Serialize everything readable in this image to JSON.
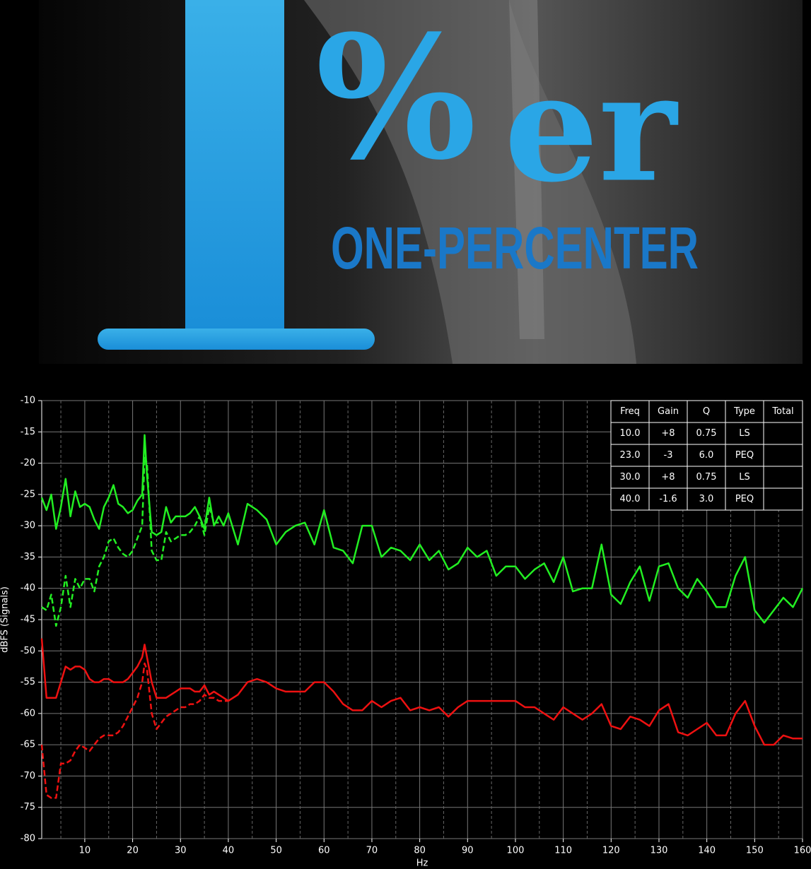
{
  "banner": {
    "digit": "1",
    "percent": "%",
    "suffix": "er",
    "subtitle": "ONE-PERCENTER"
  },
  "chart_data": {
    "type": "line",
    "xlabel": "Hz",
    "ylabel": "dBFS (Signals)",
    "xlim": [
      1,
      160
    ],
    "ylim": [
      -80,
      -10
    ],
    "xticks": [
      10,
      20,
      30,
      40,
      50,
      60,
      70,
      80,
      90,
      100,
      110,
      120,
      130,
      140,
      150,
      160
    ],
    "xminorticks": [
      5,
      15,
      25,
      35,
      45,
      55,
      65,
      75,
      85,
      95,
      105,
      115,
      125,
      135,
      145,
      155
    ],
    "yticks": [
      -10,
      -15,
      -20,
      -25,
      -30,
      -35,
      -40,
      -45,
      -50,
      -55,
      -60,
      -65,
      -70,
      -75,
      -80
    ],
    "grid": true,
    "x": [
      1,
      2,
      3,
      4,
      5,
      6,
      7,
      8,
      9,
      10,
      11,
      12,
      13,
      14,
      15,
      16,
      17,
      18,
      19,
      20,
      21,
      22,
      22.5,
      23,
      24,
      25,
      26,
      27,
      28,
      29,
      30,
      31,
      32,
      33,
      34,
      35,
      36,
      37,
      38,
      39,
      40,
      42,
      44,
      46,
      48,
      50,
      52,
      54,
      56,
      58,
      60,
      62,
      64,
      66,
      68,
      70,
      72,
      74,
      76,
      78,
      80,
      82,
      84,
      86,
      88,
      90,
      92,
      94,
      96,
      98,
      100,
      102,
      104,
      106,
      108,
      110,
      112,
      114,
      116,
      118,
      120,
      122,
      124,
      126,
      128,
      130,
      132,
      134,
      136,
      138,
      140,
      142,
      144,
      146,
      148,
      150,
      152,
      154,
      156,
      158,
      160
    ],
    "series": [
      {
        "color": "#22ee22",
        "dashed": false,
        "values": [
          -25.5,
          -27.5,
          -25,
          -30.5,
          -27,
          -22.5,
          -28.5,
          -24.5,
          -27,
          -26.5,
          -27,
          -29,
          -30.5,
          -27,
          -25.5,
          -23.5,
          -26.5,
          -27,
          -28,
          -27.5,
          -26,
          -25,
          -15.5,
          -22,
          -31,
          -31.5,
          -31,
          -27,
          -29.5,
          -28.5,
          -28.5,
          -28.5,
          -28,
          -27,
          -28.5,
          -30.5,
          -25.5,
          -30,
          -28.5,
          -30,
          -28,
          -33,
          -26.5,
          -27.5,
          -29,
          -33,
          -31,
          -30,
          -29.5,
          -33,
          -27.5,
          -33.5,
          -34,
          -36,
          -30,
          -30,
          -35,
          -33.5,
          -34,
          -35.5,
          -33,
          -35.5,
          -34,
          -37,
          -36,
          -33.5,
          -35,
          -34,
          -38,
          -36.5,
          -36.5,
          -38.5,
          -37,
          -36,
          -39,
          -35,
          -40.5,
          -40,
          -40,
          -33,
          -41,
          -42.5,
          -39,
          -36.5,
          -42,
          -36.5,
          -36,
          -40,
          -41.5,
          -38.5,
          -40.5,
          -43,
          -43,
          -38,
          -35,
          -43.5,
          -45.5,
          -43.5,
          -41.5,
          -43,
          -40
        ]
      },
      {
        "color": "#22ee22",
        "dashed": true,
        "values": [
          -43,
          -43.5,
          -41,
          -46,
          -43,
          -38,
          -43,
          -38.5,
          -40,
          -38.5,
          -38.5,
          -40.5,
          -36.5,
          -35,
          -32.5,
          -32,
          -33.5,
          -34.5,
          -35,
          -34,
          -32,
          -30,
          -19,
          -20,
          -34,
          -35.5,
          -35.5,
          -31,
          -32.5,
          -32,
          -31.5,
          -31.5,
          -31,
          -30,
          -28.5,
          -31.5,
          -27,
          -29.5,
          -29.5,
          null,
          null,
          null,
          null,
          null,
          null,
          null,
          null,
          null,
          null,
          null,
          null,
          null,
          null,
          null,
          null,
          null,
          null,
          null,
          null,
          null,
          null,
          null,
          null,
          null,
          null,
          null,
          null,
          null,
          null,
          null,
          null,
          null,
          null,
          null,
          null,
          null,
          null,
          null,
          null,
          null,
          null,
          null,
          null,
          null,
          null,
          null,
          null,
          null,
          null,
          null,
          null,
          null,
          null,
          null,
          null,
          null,
          null,
          null,
          null,
          null,
          null
        ]
      },
      {
        "color": "#ee1111",
        "dashed": false,
        "values": [
          -48,
          -57.5,
          -57.5,
          -57.5,
          -55,
          -52.5,
          -53,
          -52.5,
          -52.5,
          -53,
          -54.5,
          -55,
          -55,
          -54.5,
          -54.5,
          -55,
          -55,
          -55,
          -54.5,
          -53.5,
          -52.5,
          -51,
          -49,
          -51,
          -55,
          -57.5,
          -57.5,
          -57.5,
          -57,
          -56.5,
          -56,
          -56,
          -56,
          -56.5,
          -56.5,
          -55.5,
          -57,
          -56.5,
          -57,
          -57.5,
          -58,
          -57,
          -55,
          -54.5,
          -55,
          -56,
          -56.5,
          -56.5,
          -56.5,
          -55,
          -55,
          -56.5,
          -58.5,
          -59.5,
          -59.5,
          -58,
          -59,
          -58,
          -57.5,
          -59.5,
          -59,
          -59.5,
          -59,
          -60.5,
          -59,
          -58,
          -58,
          -58,
          -58,
          -58,
          -58,
          -59,
          -59,
          -60,
          -61,
          -59,
          -60,
          -61,
          -60,
          -58.5,
          -62,
          -62.5,
          -60.5,
          -61,
          -62,
          -59.5,
          -58.5,
          -63,
          -63.5,
          -62.5,
          -61.5,
          -63.5,
          -63.5,
          -60,
          -58,
          -62,
          -65,
          -65,
          -63.5,
          -64,
          -64
        ]
      },
      {
        "color": "#ee1111",
        "dashed": true,
        "values": [
          -65,
          -73,
          -73.5,
          -73.5,
          -68,
          -68,
          -67.5,
          -66,
          -65,
          -65.5,
          -66,
          -65,
          -64,
          -63.5,
          -63.5,
          -63.5,
          -63,
          -62,
          -60.5,
          -59,
          -57.5,
          -55,
          -52,
          -53,
          -60,
          -62.5,
          -61.5,
          -60.5,
          -60,
          -59.5,
          -59,
          -59,
          -58.5,
          -58.5,
          -58,
          -57,
          -57.5,
          -57.5,
          -58,
          -58,
          -58,
          null,
          null,
          null,
          null,
          null,
          null,
          null,
          null,
          null,
          null,
          null,
          null,
          null,
          null,
          null,
          null,
          null,
          null,
          null,
          null,
          null,
          null,
          null,
          null,
          null,
          null,
          null,
          null,
          null,
          null,
          null,
          null,
          null,
          null,
          null,
          null,
          null,
          null,
          null,
          null,
          null,
          null,
          null,
          null,
          null,
          null,
          null,
          null,
          null,
          null,
          null,
          null,
          null,
          null,
          null,
          null,
          null,
          null,
          null,
          null
        ]
      }
    ],
    "table": {
      "columns": [
        "Freq",
        "Gain",
        "Q",
        "Type",
        "Total"
      ],
      "rows": [
        [
          "10.0",
          "+8",
          "0.75",
          "LS"
        ],
        [
          "23.0",
          "-3",
          "6.0",
          "PEQ"
        ],
        [
          "30.0",
          "+8",
          "0.75",
          "LS"
        ],
        [
          "40.0",
          "-1.6",
          "3.0",
          "PEQ"
        ]
      ]
    }
  }
}
